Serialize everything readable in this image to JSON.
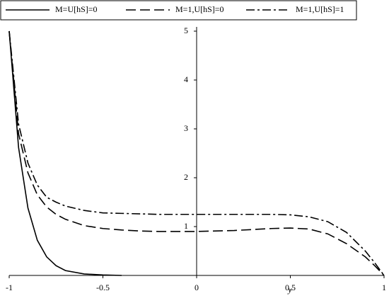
{
  "chart_data": {
    "type": "line",
    "x_label": "y",
    "x": [
      -1,
      -0.95,
      -0.9,
      -0.85,
      -0.8,
      -0.75,
      -0.7,
      -0.6,
      -0.5,
      -0.4,
      -0.3,
      -0.2,
      0,
      0.2,
      0.3,
      0.4,
      0.5,
      0.6,
      0.7,
      0.8,
      0.9,
      0.95,
      1
    ],
    "series": [
      {
        "name": "M=U[hS]=0",
        "color": "#000000",
        "style": "solid",
        "values": [
          5,
          2.62,
          1.38,
          0.72,
          0.38,
          0.2,
          0.1,
          0.03,
          0.01,
          0,
          null,
          null,
          null,
          null,
          null,
          null,
          null,
          null,
          null,
          null,
          null,
          null,
          null
        ]
      },
      {
        "name": "M=1,U[hS]=0",
        "color": "#000000",
        "style": "dash",
        "values": [
          5,
          2.9,
          2.1,
          1.65,
          1.4,
          1.25,
          1.15,
          1.02,
          0.96,
          0.93,
          0.91,
          0.9,
          0.9,
          0.92,
          0.94,
          0.96,
          0.97,
          0.95,
          0.85,
          0.65,
          0.38,
          0.2,
          0
        ]
      },
      {
        "name": "M=1,U[hS]=1",
        "color": "#000000",
        "style": "dashdot",
        "values": [
          5,
          3.1,
          2.3,
          1.85,
          1.6,
          1.5,
          1.42,
          1.33,
          1.28,
          1.27,
          1.26,
          1.25,
          1.25,
          1.25,
          1.25,
          1.25,
          1.24,
          1.2,
          1.1,
          0.88,
          0.5,
          0.26,
          0
        ]
      }
    ],
    "xlim": [
      -1,
      1
    ],
    "ylim": [
      0,
      5
    ],
    "xticks": [
      -1,
      -0.5,
      0,
      0.5,
      1
    ],
    "yticks": [
      1,
      2,
      3,
      4,
      5
    ],
    "legend": "top"
  }
}
